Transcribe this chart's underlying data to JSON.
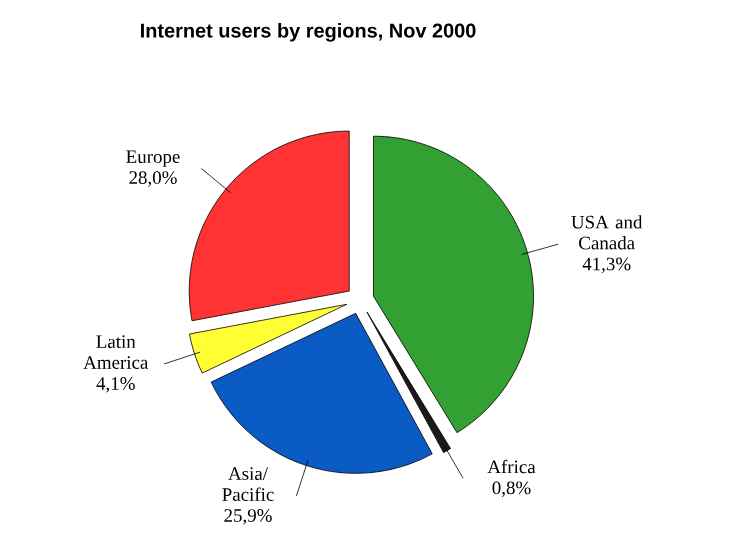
{
  "chart_data": {
    "type": "pie",
    "title": "Internet users by regions, Nov 2000",
    "categories": [
      "USA and Canada",
      "Africa",
      "Asia/ Pacific",
      "Latin America",
      "Europe"
    ],
    "values": [
      41.3,
      0.8,
      25.9,
      4.1,
      28.0
    ],
    "value_labels": [
      "41,3%",
      "0,8%",
      "25,9%",
      "4,1%",
      "28,0%"
    ],
    "colors": [
      "#33a033",
      "#1a1a1a",
      "#0a5bc4",
      "#ffff33",
      "#ff3333"
    ]
  }
}
